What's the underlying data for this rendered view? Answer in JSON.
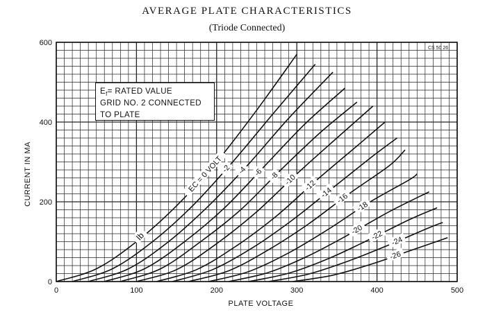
{
  "title": "AVERAGE PLATE CHARACTERISTICS",
  "subtitle": "(Triode Connected)",
  "note": {
    "line1_prefix": "E",
    "line1_sub": "f",
    "line1_rest": "= RATED VALUE",
    "line2": "GRID NO. 2 CONNECTED",
    "line3": "TO PLATE"
  },
  "figure_code": "CS 50 26",
  "curve_symbol": "Ib",
  "chart_data": {
    "type": "line",
    "xlabel": "PLATE VOLTAGE",
    "ylabel": "CURRENT IN MA",
    "xlim": [
      0,
      500
    ],
    "ylim": [
      0,
      600
    ],
    "x_ticks": [
      0,
      100,
      200,
      300,
      400,
      500
    ],
    "y_ticks": [
      0,
      200,
      400,
      600
    ],
    "grid": true,
    "series": [
      {
        "name": "EC = 0 VOLT",
        "x": [
          0,
          50,
          100,
          150,
          200,
          250,
          300
        ],
        "y": [
          0,
          32,
          100,
          190,
          300,
          430,
          570
        ]
      },
      {
        "name": "-2",
        "x": [
          20,
          70,
          120,
          170,
          220,
          270,
          323
        ],
        "y": [
          0,
          32,
          100,
          190,
          300,
          420,
          545
        ]
      },
      {
        "name": "-4",
        "x": [
          40,
          90,
          140,
          190,
          240,
          290,
          345
        ],
        "y": [
          0,
          32,
          100,
          190,
          295,
          410,
          525
        ]
      },
      {
        "name": "-6",
        "x": [
          60,
          110,
          160,
          210,
          260,
          310,
          360
        ],
        "y": [
          0,
          32,
          100,
          185,
          290,
          395,
          485
        ]
      },
      {
        "name": "-8",
        "x": [
          80,
          130,
          180,
          230,
          280,
          330,
          375
        ],
        "y": [
          0,
          32,
          100,
          180,
          280,
          375,
          450
        ]
      },
      {
        "name": "-10",
        "x": [
          100,
          150,
          200,
          250,
          300,
          350,
          395
        ],
        "y": [
          0,
          30,
          95,
          175,
          270,
          360,
          440
        ]
      },
      {
        "name": "-12",
        "x": [
          125,
          175,
          225,
          275,
          325,
          375,
          410
        ],
        "y": [
          0,
          30,
          90,
          165,
          255,
          340,
          400
        ]
      },
      {
        "name": "-14",
        "x": [
          145,
          195,
          245,
          295,
          345,
          395,
          425
        ],
        "y": [
          0,
          30,
          85,
          155,
          235,
          315,
          360
        ]
      },
      {
        "name": "-16",
        "x": [
          165,
          215,
          265,
          315,
          365,
          415,
          435
        ],
        "y": [
          0,
          27,
          80,
          145,
          220,
          290,
          330
        ]
      },
      {
        "name": "-18",
        "x": [
          190,
          240,
          290,
          340,
          390,
          440,
          450
        ],
        "y": [
          0,
          25,
          72,
          132,
          198,
          255,
          270
        ]
      },
      {
        "name": "-20",
        "x": [
          215,
          265,
          315,
          365,
          415,
          465
        ],
        "y": [
          0,
          23,
          65,
          118,
          175,
          225
        ]
      },
      {
        "name": "-22",
        "x": [
          240,
          290,
          340,
          390,
          440,
          475
        ],
        "y": [
          0,
          21,
          58,
          105,
          155,
          185
        ]
      },
      {
        "name": "-24",
        "x": [
          265,
          315,
          365,
          415,
          465,
          482
        ],
        "y": [
          0,
          19,
          52,
          92,
          135,
          148
        ]
      },
      {
        "name": "-26",
        "x": [
          295,
          345,
          395,
          445,
          488
        ],
        "y": [
          0,
          16,
          45,
          80,
          110
        ]
      }
    ],
    "curve_labels": [
      "EC = 0 VOLT",
      "-2",
      "-4",
      "-6",
      "-8",
      "-10",
      "-12",
      "-14",
      "-16",
      "-18",
      "-20",
      "-22",
      "-24",
      "-26"
    ]
  }
}
